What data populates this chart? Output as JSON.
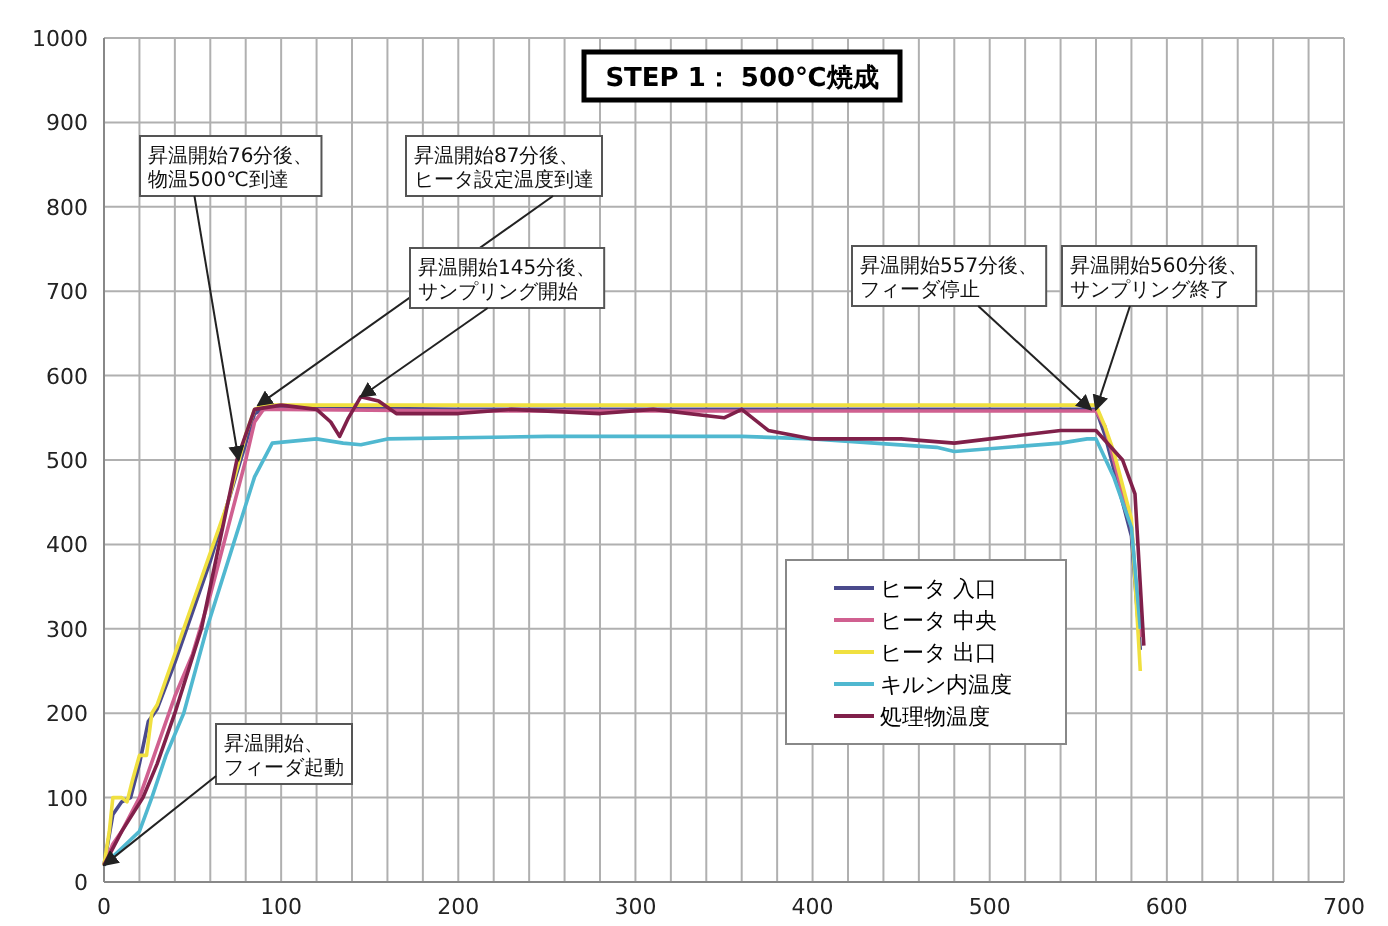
{
  "chart_data": {
    "type": "line",
    "title": "STEP 1： 500℃焼成",
    "xlim": [
      0,
      700
    ],
    "ylim": [
      0,
      1000
    ],
    "xticks": [
      0,
      {
        "value": 20,
        "label": null
      },
      {
        "value": 40,
        "label": null
      },
      {
        "value": 60,
        "label": null
      },
      {
        "value": 80,
        "label": null
      },
      100,
      {
        "value": 120,
        "label": null
      },
      {
        "value": 140,
        "label": null
      },
      {
        "value": 160,
        "label": null
      },
      {
        "value": 180,
        "label": null
      },
      200,
      {
        "value": 220,
        "label": null
      },
      {
        "value": 240,
        "label": null
      },
      {
        "value": 260,
        "label": null
      },
      {
        "value": 280,
        "label": null
      },
      300,
      {
        "value": 320,
        "label": null
      },
      {
        "value": 340,
        "label": null
      },
      {
        "value": 360,
        "label": null
      },
      {
        "value": 380,
        "label": null
      },
      400,
      {
        "value": 420,
        "label": null
      },
      {
        "value": 440,
        "label": null
      },
      {
        "value": 460,
        "label": null
      },
      {
        "value": 480,
        "label": null
      },
      500,
      {
        "value": 520,
        "label": null
      },
      {
        "value": 540,
        "label": null
      },
      {
        "value": 560,
        "label": null
      },
      {
        "value": 580,
        "label": null
      },
      600,
      {
        "value": 620,
        "label": null
      },
      {
        "value": 640,
        "label": null
      },
      {
        "value": 660,
        "label": null
      },
      {
        "value": 680,
        "label": null
      },
      700
    ],
    "yticks": [
      0,
      100,
      200,
      300,
      400,
      500,
      600,
      700,
      800,
      900,
      1000
    ],
    "grid": true,
    "legend": "bottom right",
    "marker": "none",
    "line_style": "solid",
    "series": [
      {
        "name": "ヒータ 入口",
        "color": "#4a4a8c",
        "x": [
          0,
          5,
          10,
          15,
          20,
          25,
          30,
          40,
          50,
          60,
          70,
          80,
          85,
          90,
          100,
          200,
          300,
          400,
          500,
          555,
          560,
          565,
          570,
          575,
          580,
          585
        ],
        "values": [
          20,
          80,
          95,
          100,
          140,
          190,
          205,
          260,
          320,
          380,
          450,
          520,
          555,
          560,
          562,
          560,
          560,
          560,
          560,
          560,
          560,
          530,
          490,
          450,
          410,
          275
        ]
      },
      {
        "name": "ヒータ 中央",
        "color": "#d06090",
        "x": [
          0,
          5,
          10,
          20,
          30,
          40,
          50,
          60,
          70,
          80,
          85,
          90,
          100,
          200,
          300,
          400,
          500,
          560,
          565,
          570,
          575,
          580,
          585
        ],
        "values": [
          20,
          45,
          60,
          100,
          160,
          220,
          270,
          340,
          420,
          500,
          545,
          560,
          560,
          558,
          558,
          558,
          558,
          558,
          540,
          500,
          460,
          420,
          290
        ]
      },
      {
        "name": "ヒータ 出口",
        "color": "#f0e040",
        "x": [
          0,
          3,
          5,
          10,
          13,
          16,
          20,
          24,
          27,
          30,
          35,
          40,
          45,
          50,
          55,
          60,
          65,
          70,
          75,
          80,
          85,
          90,
          100,
          150,
          200,
          300,
          400,
          500,
          555,
          560,
          565,
          570,
          575,
          580,
          585
        ],
        "values": [
          20,
          60,
          100,
          100,
          95,
          120,
          150,
          150,
          200,
          210,
          240,
          270,
          300,
          330,
          360,
          390,
          420,
          450,
          490,
          530,
          560,
          565,
          565,
          565,
          565,
          565,
          565,
          565,
          565,
          565,
          540,
          510,
          470,
          430,
          250
        ]
      },
      {
        "name": "キルン内温度",
        "color": "#50b8d0",
        "x": [
          0,
          10,
          20,
          27,
          35,
          45,
          58,
          73,
          85,
          95,
          120,
          135,
          145,
          160,
          250,
          360,
          400,
          470,
          480,
          540,
          555,
          560,
          570,
          580,
          585
        ],
        "values": [
          20,
          40,
          60,
          100,
          150,
          200,
          300,
          400,
          480,
          520,
          525,
          520,
          518,
          525,
          528,
          528,
          525,
          515,
          510,
          520,
          525,
          525,
          480,
          420,
          300
        ]
      },
      {
        "name": "処理物温度",
        "color": "#80204a",
        "x": [
          0,
          10,
          22,
          30,
          40,
          55,
          65,
          75,
          85,
          100,
          120,
          128,
          133,
          138,
          145,
          155,
          165,
          200,
          230,
          280,
          310,
          350,
          360,
          375,
          400,
          450,
          480,
          500,
          540,
          560,
          575,
          582,
          587
        ],
        "values": [
          20,
          60,
          100,
          140,
          200,
          300,
          400,
          500,
          560,
          565,
          560,
          545,
          528,
          550,
          575,
          570,
          555,
          555,
          560,
          555,
          560,
          550,
          560,
          535,
          525,
          525,
          520,
          525,
          535,
          535,
          500,
          460,
          280
        ]
      }
    ],
    "annotations": [
      {
        "text": "昇温開始76分後、物温500℃到達",
        "x": 76,
        "y": 500
      },
      {
        "text": "昇温開始87分後、ヒータ設定温度到達",
        "x": 87,
        "y": 565
      },
      {
        "text": "昇温開始145分後、サンプリング開始",
        "x": 145,
        "y": 575
      },
      {
        "text": "昇温開始557分後、フィーダ停止",
        "x": 557,
        "y": 560
      },
      {
        "text": "昇温開始560分後、サンプリング終了",
        "x": 560,
        "y": 560
      },
      {
        "text": "昇温開始、フィーダ起動",
        "x": 0,
        "y": 20
      }
    ]
  }
}
